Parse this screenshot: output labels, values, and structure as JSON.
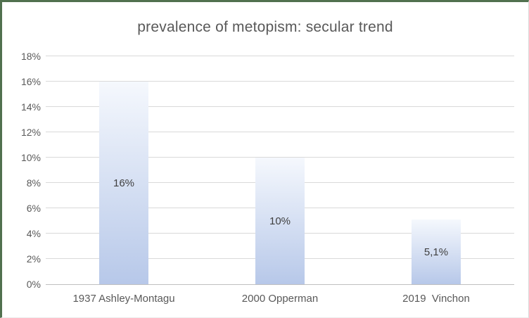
{
  "window": {
    "background": "#ffffff",
    "frame_top_left_color": "#51714f",
    "frame_right_bottom_color": "#d9d9d9"
  },
  "chart_data": {
    "type": "bar",
    "title": "prevalence of metopism: secular trend",
    "categories": [
      "1937 Ashley-Montagu",
      "2000 Opperman",
      "2019  Vinchon"
    ],
    "values": [
      16,
      10,
      5.1
    ],
    "bar_labels": [
      "16%",
      "10%",
      "5,1%"
    ],
    "xlabel": "",
    "ylabel": "",
    "ylim": [
      0,
      18
    ],
    "y_tick_step": 2,
    "y_tick_labels": [
      "0%",
      "2%",
      "4%",
      "6%",
      "8%",
      "10%",
      "12%",
      "14%",
      "16%",
      "18%"
    ],
    "grid": true,
    "legend_position": "none",
    "colors": {
      "bar_gradient_top": "#f5f8fd",
      "bar_gradient_bottom": "#b7c8e9",
      "title_text": "#595959",
      "axis_text": "#595959",
      "bar_label_text": "#404040",
      "gridline": "#d9d9d9",
      "axis_line": "#c0c0c0"
    }
  }
}
